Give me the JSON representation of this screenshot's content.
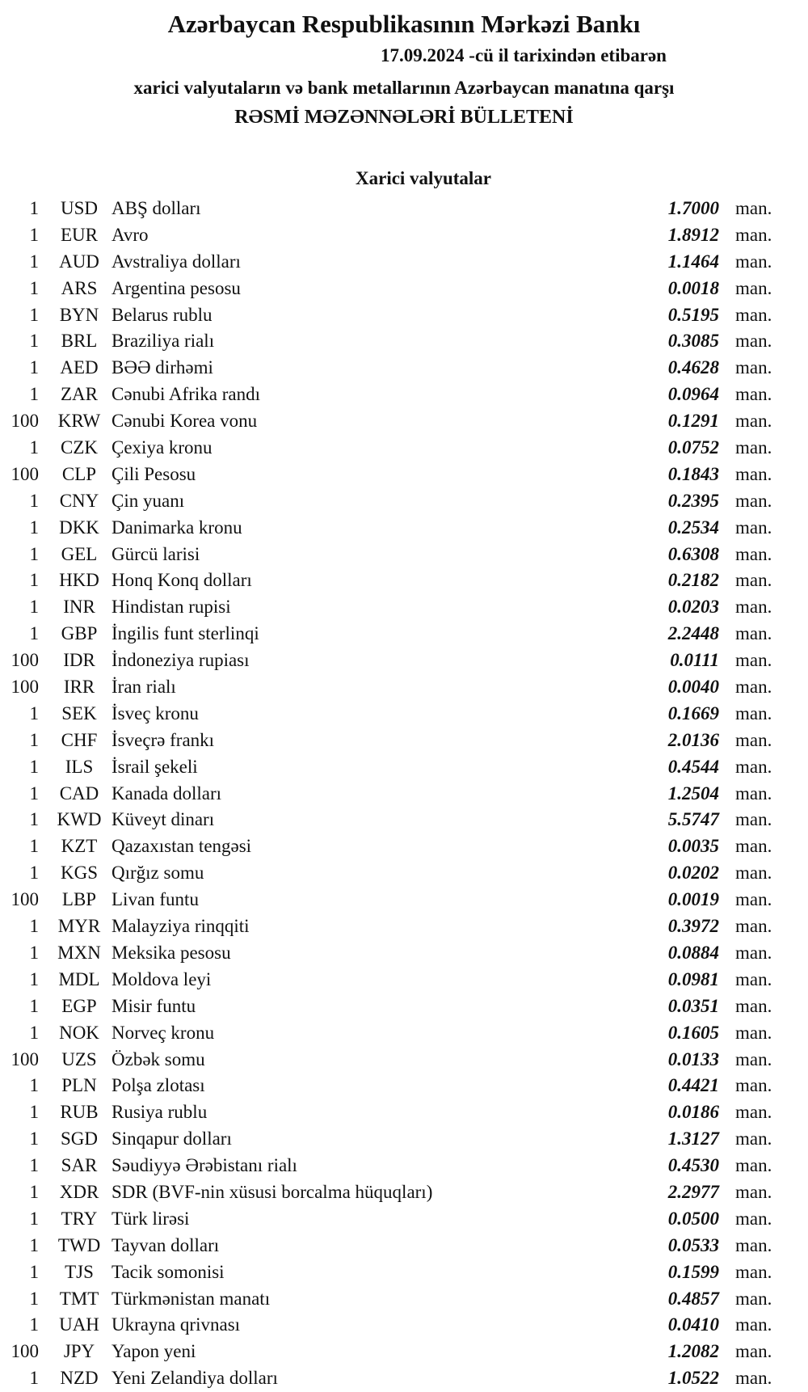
{
  "header": {
    "title": "Azərbaycan Respublikasının Mərkəzi Bankı",
    "date_line": "17.09.2024  -cü il tarixindən etibarən",
    "subtitle": "xarici valyutaların və bank metallarının Azərbaycan manatına qarşı",
    "bulletin": "RƏSMİ MƏZƏNNƏLƏRİ BÜLLETENİ",
    "section": "Xarici valyutalar"
  },
  "unit": "man.",
  "rates": [
    {
      "qty": "1",
      "code": "USD",
      "name": "ABŞ dolları",
      "rate": "1.7000"
    },
    {
      "qty": "1",
      "code": "EUR",
      "name": "Avro",
      "rate": "1.8912"
    },
    {
      "qty": "1",
      "code": "AUD",
      "name": "Avstraliya dolları",
      "rate": "1.1464"
    },
    {
      "qty": "1",
      "code": "ARS",
      "name": "Argentina pesosu",
      "rate": "0.0018"
    },
    {
      "qty": "1",
      "code": "BYN",
      "name": "Belarus rublu",
      "rate": "0.5195"
    },
    {
      "qty": "1",
      "code": "BRL",
      "name": "Braziliya rialı",
      "rate": "0.3085"
    },
    {
      "qty": "1",
      "code": "AED",
      "name": "BƏƏ dirhəmi",
      "rate": "0.4628"
    },
    {
      "qty": "1",
      "code": "ZAR",
      "name": "Cənubi Afrika randı",
      "rate": "0.0964"
    },
    {
      "qty": "100",
      "code": "KRW",
      "name": "Cənubi Korea vonu",
      "rate": "0.1291"
    },
    {
      "qty": "1",
      "code": "CZK",
      "name": "Çexiya kronu",
      "rate": "0.0752"
    },
    {
      "qty": "100",
      "code": "CLP",
      "name": "Çili Pesosu",
      "rate": "0.1843"
    },
    {
      "qty": "1",
      "code": "CNY",
      "name": "Çin yuanı",
      "rate": "0.2395"
    },
    {
      "qty": "1",
      "code": "DKK",
      "name": "Danimarka kronu",
      "rate": "0.2534"
    },
    {
      "qty": "1",
      "code": "GEL",
      "name": "Gürcü larisi",
      "rate": "0.6308"
    },
    {
      "qty": "1",
      "code": "HKD",
      "name": "Honq Konq dolları",
      "rate": "0.2182"
    },
    {
      "qty": "1",
      "code": "INR",
      "name": "Hindistan rupisi",
      "rate": "0.0203"
    },
    {
      "qty": "1",
      "code": "GBP",
      "name": "İngilis funt sterlinqi",
      "rate": "2.2448"
    },
    {
      "qty": "100",
      "code": "IDR",
      "name": "İndoneziya rupiası",
      "rate": "0.0111"
    },
    {
      "qty": "100",
      "code": "IRR",
      "name": "İran rialı",
      "rate": "0.0040"
    },
    {
      "qty": "1",
      "code": "SEK",
      "name": "İsveç kronu",
      "rate": "0.1669"
    },
    {
      "qty": "1",
      "code": "CHF",
      "name": "İsveçrə frankı",
      "rate": "2.0136"
    },
    {
      "qty": "1",
      "code": "ILS",
      "name": "İsrail şekeli",
      "rate": "0.4544"
    },
    {
      "qty": "1",
      "code": "CAD",
      "name": "Kanada dolları",
      "rate": "1.2504"
    },
    {
      "qty": "1",
      "code": "KWD",
      "name": "Küveyt dinarı",
      "rate": "5.5747"
    },
    {
      "qty": "1",
      "code": "KZT",
      "name": "Qazaxıstan tengəsi",
      "rate": "0.0035"
    },
    {
      "qty": "1",
      "code": "KGS",
      "name": "Qırğız somu",
      "rate": "0.0202"
    },
    {
      "qty": "100",
      "code": "LBP",
      "name": "Livan funtu",
      "rate": "0.0019"
    },
    {
      "qty": "1",
      "code": "MYR",
      "name": "Malayziya rinqqiti",
      "rate": "0.3972"
    },
    {
      "qty": "1",
      "code": "MXN",
      "name": "Meksika pesosu",
      "rate": "0.0884"
    },
    {
      "qty": "1",
      "code": "MDL",
      "name": "Moldova leyi",
      "rate": "0.0981"
    },
    {
      "qty": "1",
      "code": "EGP",
      "name": "Misir funtu",
      "rate": "0.0351"
    },
    {
      "qty": "1",
      "code": "NOK",
      "name": "Norveç kronu",
      "rate": "0.1605"
    },
    {
      "qty": "100",
      "code": "UZS",
      "name": "Özbək somu",
      "rate": "0.0133"
    },
    {
      "qty": "1",
      "code": "PLN",
      "name": "Polşa zlotası",
      "rate": "0.4421"
    },
    {
      "qty": "1",
      "code": "RUB",
      "name": "Rusiya rublu",
      "rate": "0.0186"
    },
    {
      "qty": "1",
      "code": "SGD",
      "name": "Sinqapur dolları",
      "rate": "1.3127"
    },
    {
      "qty": "1",
      "code": "SAR",
      "name": "Səudiyyə Ərəbistanı rialı",
      "rate": "0.4530"
    },
    {
      "qty": "1",
      "code": "XDR",
      "name": "SDR (BVF-nin xüsusi borcalma hüquqları)",
      "rate": "2.2977"
    },
    {
      "qty": "1",
      "code": "TRY",
      "name": "Türk lirəsi",
      "rate": "0.0500"
    },
    {
      "qty": "1",
      "code": "TWD",
      "name": "Tayvan dolları",
      "rate": "0.0533"
    },
    {
      "qty": "1",
      "code": "TJS",
      "name": "Tacik somonisi",
      "rate": "0.1599"
    },
    {
      "qty": "1",
      "code": "TMT",
      "name": "Türkmənistan manatı",
      "rate": "0.4857"
    },
    {
      "qty": "1",
      "code": "UAH",
      "name": "Ukrayna qrivnası",
      "rate": "0.0410"
    },
    {
      "qty": "100",
      "code": "JPY",
      "name": "Yapon yeni",
      "rate": "1.2082"
    },
    {
      "qty": "1",
      "code": "NZD",
      "name": "Yeni Zelandiya dolları",
      "rate": "1.0522"
    }
  ]
}
